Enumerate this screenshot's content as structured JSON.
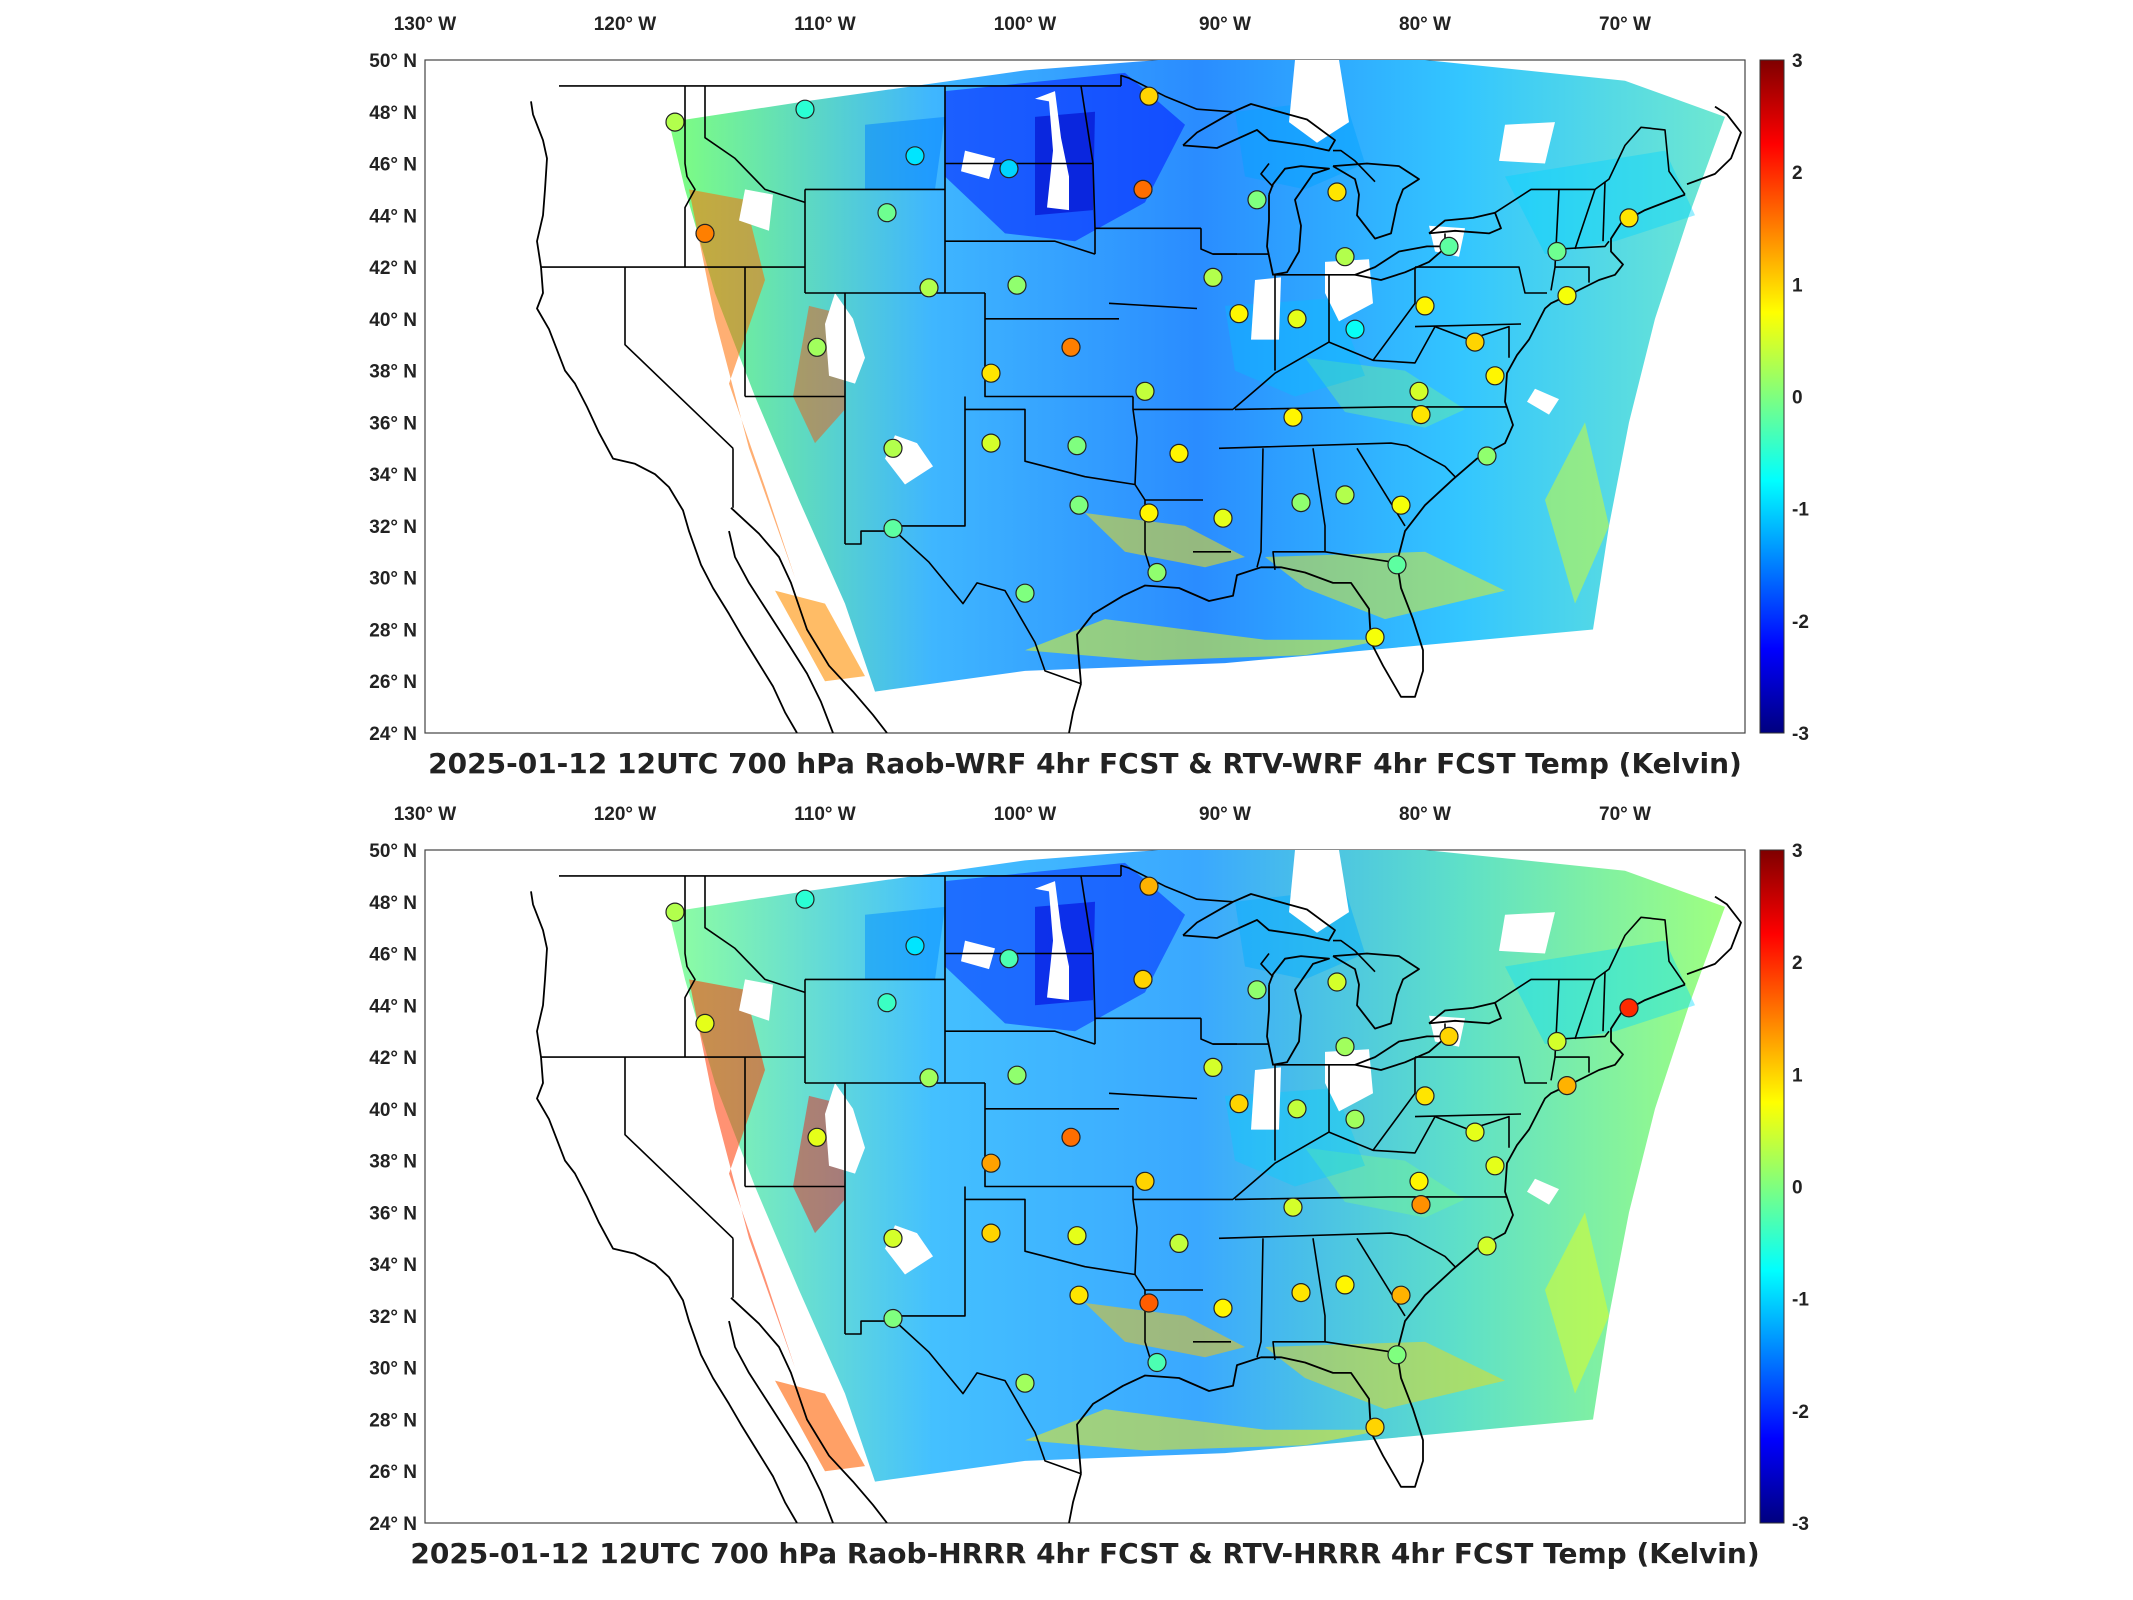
{
  "panels": [
    {
      "title": "2025-01-12 12UTC 700 hPa Raob-WRF 4hr FCST & RTV-WRF 4hr FCST Temp (Kelvin)",
      "colorbar": {
        "min": -3,
        "max": 3,
        "ticks": [
          "3",
          "2",
          "1",
          "0",
          "-1",
          "-2",
          "-3"
        ]
      },
      "stations": [
        {
          "lon": -117.5,
          "lat": 47.6,
          "v": 0.3
        },
        {
          "lon": -111.0,
          "lat": 48.1,
          "v": -0.5
        },
        {
          "lon": -105.5,
          "lat": 46.3,
          "v": -0.9
        },
        {
          "lon": -100.8,
          "lat": 45.8,
          "v": -1.0
        },
        {
          "lon": -93.8,
          "lat": 48.6,
          "v": 1.0
        },
        {
          "lon": -94.1,
          "lat": 45.0,
          "v": 1.6
        },
        {
          "lon": -116.0,
          "lat": 43.3,
          "v": 1.5
        },
        {
          "lon": -106.9,
          "lat": 44.1,
          "v": -0.1
        },
        {
          "lon": -88.4,
          "lat": 44.6,
          "v": 0.0
        },
        {
          "lon": -84.4,
          "lat": 44.9,
          "v": 0.9
        },
        {
          "lon": -84.0,
          "lat": 42.4,
          "v": 0.3
        },
        {
          "lon": -78.8,
          "lat": 42.8,
          "v": -0.2
        },
        {
          "lon": -73.4,
          "lat": 42.6,
          "v": -0.1
        },
        {
          "lon": -69.8,
          "lat": 43.9,
          "v": 0.9
        },
        {
          "lon": -104.8,
          "lat": 41.2,
          "v": 0.3
        },
        {
          "lon": -100.4,
          "lat": 41.3,
          "v": 0.1
        },
        {
          "lon": -90.6,
          "lat": 41.6,
          "v": 0.3
        },
        {
          "lon": -89.3,
          "lat": 40.2,
          "v": 0.8
        },
        {
          "lon": -86.4,
          "lat": 40.0,
          "v": 0.6
        },
        {
          "lon": -83.5,
          "lat": 39.6,
          "v": -0.7
        },
        {
          "lon": -80.0,
          "lat": 40.5,
          "v": 0.8
        },
        {
          "lon": -77.5,
          "lat": 39.1,
          "v": 1.0
        },
        {
          "lon": -72.9,
          "lat": 40.9,
          "v": 0.7
        },
        {
          "lon": -110.4,
          "lat": 38.9,
          "v": 0.2
        },
        {
          "lon": -97.7,
          "lat": 38.9,
          "v": 1.5
        },
        {
          "lon": -101.7,
          "lat": 37.9,
          "v": 0.9
        },
        {
          "lon": -94.0,
          "lat": 37.2,
          "v": 0.4
        },
        {
          "lon": -86.6,
          "lat": 36.2,
          "v": 0.8
        },
        {
          "lon": -80.3,
          "lat": 37.2,
          "v": 0.5
        },
        {
          "lon": -80.2,
          "lat": 36.3,
          "v": 0.9
        },
        {
          "lon": -76.5,
          "lat": 37.8,
          "v": 0.8
        },
        {
          "lon": -106.6,
          "lat": 35.0,
          "v": 0.3
        },
        {
          "lon": -101.7,
          "lat": 35.2,
          "v": 0.5
        },
        {
          "lon": -97.4,
          "lat": 35.1,
          "v": 0.0
        },
        {
          "lon": -92.3,
          "lat": 34.8,
          "v": 0.8
        },
        {
          "lon": -76.9,
          "lat": 34.7,
          "v": 0.1
        },
        {
          "lon": -97.3,
          "lat": 32.8,
          "v": 0.0
        },
        {
          "lon": -93.8,
          "lat": 32.5,
          "v": 0.8
        },
        {
          "lon": -90.1,
          "lat": 32.3,
          "v": 0.6
        },
        {
          "lon": -86.2,
          "lat": 32.9,
          "v": 0.1
        },
        {
          "lon": -84.0,
          "lat": 33.2,
          "v": 0.3
        },
        {
          "lon": -81.2,
          "lat": 32.8,
          "v": 0.7
        },
        {
          "lon": -106.6,
          "lat": 31.9,
          "v": -0.2
        },
        {
          "lon": -81.4,
          "lat": 30.5,
          "v": -0.2
        },
        {
          "lon": -100.0,
          "lat": 29.4,
          "v": 0.0
        },
        {
          "lon": -93.4,
          "lat": 30.2,
          "v": 0.1
        },
        {
          "lon": -82.5,
          "lat": 27.7,
          "v": 0.7
        }
      ]
    },
    {
      "title": "2025-01-12 12UTC 700 hPa Raob-HRRR 4hr FCST & RTV-HRRR 4hr FCST Temp (Kelvin)",
      "colorbar": {
        "min": -3,
        "max": 3,
        "ticks": [
          "3",
          "2",
          "1",
          "0",
          "-1",
          "-2",
          "-3"
        ]
      },
      "stations": [
        {
          "lon": -117.5,
          "lat": 47.6,
          "v": 0.3
        },
        {
          "lon": -111.0,
          "lat": 48.1,
          "v": -0.5
        },
        {
          "lon": -105.5,
          "lat": 46.3,
          "v": -0.9
        },
        {
          "lon": -100.8,
          "lat": 45.8,
          "v": -0.3
        },
        {
          "lon": -93.8,
          "lat": 48.6,
          "v": 1.2
        },
        {
          "lon": -94.1,
          "lat": 45.0,
          "v": 1.0
        },
        {
          "lon": -116.0,
          "lat": 43.3,
          "v": 0.6
        },
        {
          "lon": -106.9,
          "lat": 44.1,
          "v": -0.4
        },
        {
          "lon": -88.4,
          "lat": 44.6,
          "v": 0.1
        },
        {
          "lon": -84.4,
          "lat": 44.9,
          "v": 0.5
        },
        {
          "lon": -84.0,
          "lat": 42.4,
          "v": 0.2
        },
        {
          "lon": -78.8,
          "lat": 42.8,
          "v": 1.0
        },
        {
          "lon": -73.4,
          "lat": 42.6,
          "v": 0.5
        },
        {
          "lon": -69.8,
          "lat": 43.9,
          "v": 2.0
        },
        {
          "lon": -104.8,
          "lat": 41.2,
          "v": 0.2
        },
        {
          "lon": -100.4,
          "lat": 41.3,
          "v": 0.1
        },
        {
          "lon": -90.6,
          "lat": 41.6,
          "v": 0.5
        },
        {
          "lon": -89.3,
          "lat": 40.2,
          "v": 1.0
        },
        {
          "lon": -86.4,
          "lat": 40.0,
          "v": 0.4
        },
        {
          "lon": -83.5,
          "lat": 39.6,
          "v": 0.2
        },
        {
          "lon": -80.0,
          "lat": 40.5,
          "v": 0.9
        },
        {
          "lon": -77.5,
          "lat": 39.1,
          "v": 0.6
        },
        {
          "lon": -72.9,
          "lat": 40.9,
          "v": 1.2
        },
        {
          "lon": -110.4,
          "lat": 38.9,
          "v": 0.6
        },
        {
          "lon": -97.7,
          "lat": 38.9,
          "v": 1.6
        },
        {
          "lon": -101.7,
          "lat": 37.9,
          "v": 1.3
        },
        {
          "lon": -94.0,
          "lat": 37.2,
          "v": 1.0
        },
        {
          "lon": -86.6,
          "lat": 36.2,
          "v": 0.5
        },
        {
          "lon": -80.3,
          "lat": 37.2,
          "v": 0.8
        },
        {
          "lon": -80.2,
          "lat": 36.3,
          "v": 1.4
        },
        {
          "lon": -76.5,
          "lat": 37.8,
          "v": 0.6
        },
        {
          "lon": -106.6,
          "lat": 35.0,
          "v": 0.5
        },
        {
          "lon": -101.7,
          "lat": 35.2,
          "v": 1.0
        },
        {
          "lon": -97.4,
          "lat": 35.1,
          "v": 0.6
        },
        {
          "lon": -92.3,
          "lat": 34.8,
          "v": 0.4
        },
        {
          "lon": -76.9,
          "lat": 34.7,
          "v": 0.5
        },
        {
          "lon": -97.3,
          "lat": 32.8,
          "v": 0.9
        },
        {
          "lon": -93.8,
          "lat": 32.5,
          "v": 1.7
        },
        {
          "lon": -90.1,
          "lat": 32.3,
          "v": 0.8
        },
        {
          "lon": -86.2,
          "lat": 32.9,
          "v": 0.9
        },
        {
          "lon": -84.0,
          "lat": 33.2,
          "v": 0.8
        },
        {
          "lon": -81.2,
          "lat": 32.8,
          "v": 1.2
        },
        {
          "lon": -106.6,
          "lat": 31.9,
          "v": 0.0
        },
        {
          "lon": -81.4,
          "lat": 30.5,
          "v": 0.0
        },
        {
          "lon": -100.0,
          "lat": 29.4,
          "v": 0.2
        },
        {
          "lon": -93.4,
          "lat": 30.2,
          "v": -0.3
        },
        {
          "lon": -82.5,
          "lat": 27.7,
          "v": 1.0
        }
      ]
    }
  ],
  "lon_labels": [
    "130° W",
    "120° W",
    "110° W",
    "100° W",
    "90° W",
    "80° W",
    "70° W"
  ],
  "lat_labels": [
    "50° N",
    "48° N",
    "46° N",
    "44° N",
    "42° N",
    "40° N",
    "38° N",
    "36° N",
    "34° N",
    "32° N",
    "30° N",
    "28° N",
    "26° N",
    "24° N"
  ],
  "lon_values": [
    -130,
    -120,
    -110,
    -100,
    -90,
    -80,
    -70
  ],
  "lat_values": [
    50,
    48,
    46,
    44,
    42,
    40,
    38,
    36,
    34,
    32,
    30,
    28,
    26,
    24
  ],
  "colormap": [
    "#00007f",
    "#0000ff",
    "#007fff",
    "#00ffff",
    "#7fff7f",
    "#ffff00",
    "#ff7f00",
    "#ff0000",
    "#7f0000"
  ]
}
